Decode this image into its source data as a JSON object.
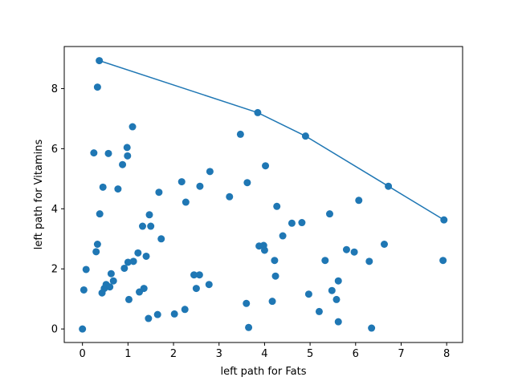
{
  "chart_data": {
    "type": "scatter",
    "title": "",
    "xlabel": "left path for Fats",
    "ylabel": "left path for Vitamins",
    "xlim": [
      -0.4,
      8.35
    ],
    "ylim": [
      -0.45,
      9.4
    ],
    "xticks": [
      0,
      1,
      2,
      3,
      4,
      5,
      6,
      7,
      8
    ],
    "yticks": [
      0,
      2,
      4,
      6,
      8
    ],
    "grid": false,
    "legend": "none",
    "color": "#1f77b4",
    "points": [
      [
        0.0,
        0.0
      ],
      [
        0.03,
        1.3
      ],
      [
        0.08,
        1.98
      ],
      [
        0.25,
        5.86
      ],
      [
        0.3,
        2.57
      ],
      [
        0.33,
        2.82
      ],
      [
        0.33,
        8.05
      ],
      [
        0.37,
        8.93
      ],
      [
        0.38,
        3.83
      ],
      [
        0.43,
        1.2
      ],
      [
        0.45,
        4.72
      ],
      [
        0.48,
        1.35
      ],
      [
        0.52,
        1.48
      ],
      [
        0.57,
        5.84
      ],
      [
        0.6,
        1.4
      ],
      [
        0.63,
        1.84
      ],
      [
        0.68,
        1.6
      ],
      [
        0.78,
        4.66
      ],
      [
        0.88,
        5.47
      ],
      [
        0.92,
        2.02
      ],
      [
        0.98,
        6.04
      ],
      [
        0.99,
        5.76
      ],
      [
        1.0,
        2.22
      ],
      [
        1.02,
        0.98
      ],
      [
        1.1,
        6.73
      ],
      [
        1.12,
        2.25
      ],
      [
        1.22,
        2.53
      ],
      [
        1.25,
        1.23
      ],
      [
        1.32,
        3.42
      ],
      [
        1.35,
        1.35
      ],
      [
        1.4,
        2.42
      ],
      [
        1.45,
        0.35
      ],
      [
        1.47,
        3.8
      ],
      [
        1.5,
        3.42
      ],
      [
        1.65,
        0.48
      ],
      [
        1.68,
        4.55
      ],
      [
        1.73,
        3.0
      ],
      [
        2.02,
        0.5
      ],
      [
        2.18,
        4.9
      ],
      [
        2.25,
        0.65
      ],
      [
        2.27,
        4.22
      ],
      [
        2.45,
        1.8
      ],
      [
        2.5,
        1.35
      ],
      [
        2.57,
        1.8
      ],
      [
        2.58,
        4.75
      ],
      [
        2.78,
        1.48
      ],
      [
        2.8,
        5.24
      ],
      [
        3.23,
        4.4
      ],
      [
        3.47,
        6.48
      ],
      [
        3.6,
        0.85
      ],
      [
        3.62,
        4.87
      ],
      [
        3.65,
        0.05
      ],
      [
        3.85,
        7.2
      ],
      [
        3.88,
        2.76
      ],
      [
        3.98,
        2.78
      ],
      [
        4.0,
        2.62
      ],
      [
        4.02,
        5.43
      ],
      [
        4.17,
        0.92
      ],
      [
        4.22,
        2.28
      ],
      [
        4.24,
        1.76
      ],
      [
        4.27,
        4.08
      ],
      [
        4.4,
        3.1
      ],
      [
        4.6,
        3.52
      ],
      [
        4.82,
        3.54
      ],
      [
        4.9,
        6.42
      ],
      [
        4.97,
        1.16
      ],
      [
        5.2,
        0.58
      ],
      [
        5.33,
        2.28
      ],
      [
        5.43,
        3.83
      ],
      [
        5.48,
        1.28
      ],
      [
        5.58,
        0.98
      ],
      [
        5.62,
        1.6
      ],
      [
        5.62,
        0.24
      ],
      [
        5.8,
        2.64
      ],
      [
        5.97,
        2.56
      ],
      [
        6.07,
        4.28
      ],
      [
        6.3,
        2.25
      ],
      [
        6.35,
        0.03
      ],
      [
        6.63,
        2.82
      ],
      [
        6.72,
        4.75
      ],
      [
        7.92,
        2.28
      ],
      [
        7.94,
        3.63
      ]
    ],
    "frontier": {
      "x": [
        0.37,
        3.85,
        4.9,
        6.72,
        7.94
      ],
      "y": [
        8.93,
        7.2,
        6.42,
        4.75,
        3.63
      ]
    }
  }
}
